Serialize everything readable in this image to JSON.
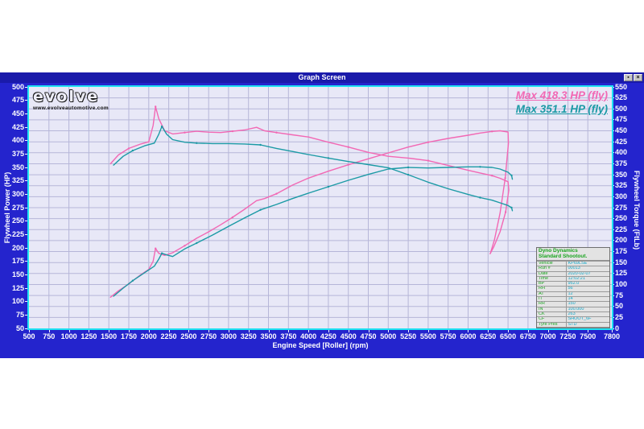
{
  "window": {
    "title": "Graph Screen",
    "button1_glyph": "▪",
    "button2_glyph": "×"
  },
  "logo": {
    "brand": "evolve",
    "url": "www.evolveautomotive.com"
  },
  "legend": [
    {
      "label": "Max 418.3 HP (fly)",
      "color": "#f268b4"
    },
    {
      "label": "Max 351.1 HP (fly)",
      "color": "#1b9aa5"
    }
  ],
  "info_box": {
    "title_line1": "Dyno Dynamics",
    "title_line2": "Standard Shootout.",
    "rows": [
      {
        "label": "Vehicle",
        "value": "KP69LSE"
      },
      {
        "label": "Run #",
        "value": "00013"
      },
      {
        "label": "Date",
        "value": "2020-02-07"
      },
      {
        "label": "Time",
        "value": "12:02:21"
      },
      {
        "label": "BP",
        "value": "952.0"
      },
      {
        "label": "RH",
        "value": "56"
      },
      {
        "label": "AT",
        "value": "12"
      },
      {
        "label": "IT",
        "value": "14"
      },
      {
        "label": "RR",
        "value": "150"
      },
      {
        "label": "IN",
        "value": "100.000"
      },
      {
        "label": "CK",
        "value": "263"
      },
      {
        "label": "CF",
        "value": "SHOOT_6F"
      },
      {
        "label": "Tyre Pres",
        "value": "STD"
      },
      {
        "label": "Gear",
        "value": "5"
      }
    ]
  },
  "chart_data": {
    "type": "line",
    "xlabel": "Engine Speed [Roller] (rpm)",
    "ylabel_left": "Flywheel Power (HP)",
    "ylabel_right": "Flywheel Torque (FtLb)",
    "xlim": [
      500,
      7800
    ],
    "hp_lim": [
      50,
      500
    ],
    "torque_lim": [
      0,
      550
    ],
    "x_grid_step": 250,
    "torque_grid_step": 25,
    "x_tick_labels": [
      500,
      750,
      1000,
      1250,
      1500,
      1750,
      2000,
      2250,
      2500,
      2750,
      3000,
      3250,
      3500,
      3750,
      4000,
      4250,
      4500,
      4750,
      5000,
      5250,
      5500,
      5750,
      6000,
      6250,
      6500,
      6750,
      7000,
      7250,
      7500,
      7800
    ],
    "hp_ticks": [
      500,
      475,
      450,
      425,
      400,
      375,
      350,
      325,
      300,
      275,
      250,
      225,
      200,
      175,
      150,
      125,
      100,
      75,
      50
    ],
    "torque_ticks": [
      550,
      525,
      500,
      475,
      450,
      425,
      400,
      375,
      350,
      325,
      300,
      275,
      250,
      225,
      200,
      175,
      150,
      125,
      100,
      75,
      50,
      25,
      0
    ],
    "grid": true,
    "legend_position": "top-right",
    "series": [
      {
        "name": "run1-power-hp",
        "axis": "hp",
        "color": "#f268b4",
        "max_label": "Max 418.3 HP (fly)",
        "points": [
          [
            1520,
            108
          ],
          [
            1620,
            120
          ],
          [
            1750,
            133
          ],
          [
            1900,
            150
          ],
          [
            2000,
            160
          ],
          [
            2055,
            175
          ],
          [
            2085,
            199
          ],
          [
            2125,
            190
          ],
          [
            2200,
            186
          ],
          [
            2300,
            191
          ],
          [
            2450,
            204
          ],
          [
            2600,
            218
          ],
          [
            2750,
            230
          ],
          [
            2900,
            243
          ],
          [
            3050,
            257
          ],
          [
            3200,
            272
          ],
          [
            3350,
            288
          ],
          [
            3450,
            292
          ],
          [
            3600,
            301
          ],
          [
            3800,
            317
          ],
          [
            4000,
            330
          ],
          [
            4250,
            343
          ],
          [
            4500,
            355
          ],
          [
            4750,
            366
          ],
          [
            5000,
            377
          ],
          [
            5250,
            388
          ],
          [
            5500,
            397
          ],
          [
            5750,
            404
          ],
          [
            6000,
            410
          ],
          [
            6150,
            414
          ],
          [
            6300,
            417
          ],
          [
            6400,
            418.3
          ],
          [
            6500,
            416
          ],
          [
            6505,
            395
          ],
          [
            6465,
            330
          ],
          [
            6400,
            265
          ],
          [
            6330,
            215
          ],
          [
            6280,
            190
          ]
        ]
      },
      {
        "name": "run1-torque-ftlb",
        "axis": "torque",
        "color": "#f268b4",
        "points": [
          [
            1520,
            375
          ],
          [
            1620,
            395
          ],
          [
            1750,
            410
          ],
          [
            1900,
            420
          ],
          [
            2000,
            425
          ],
          [
            2055,
            462
          ],
          [
            2085,
            505
          ],
          [
            2125,
            478
          ],
          [
            2200,
            450
          ],
          [
            2300,
            443
          ],
          [
            2450,
            446
          ],
          [
            2600,
            449
          ],
          [
            2750,
            447
          ],
          [
            2900,
            446
          ],
          [
            3050,
            449
          ],
          [
            3200,
            452
          ],
          [
            3350,
            458
          ],
          [
            3450,
            450
          ],
          [
            3600,
            446
          ],
          [
            3800,
            441
          ],
          [
            4000,
            436
          ],
          [
            4250,
            424
          ],
          [
            4500,
            413
          ],
          [
            4750,
            401
          ],
          [
            5000,
            392
          ],
          [
            5250,
            388
          ],
          [
            5500,
            382
          ],
          [
            5750,
            371
          ],
          [
            6000,
            360
          ],
          [
            6150,
            354
          ],
          [
            6300,
            348
          ],
          [
            6400,
            342
          ],
          [
            6500,
            334
          ],
          [
            6510,
            315
          ],
          [
            6470,
            265
          ],
          [
            6400,
            220
          ],
          [
            6320,
            185
          ],
          [
            6275,
            170
          ]
        ]
      },
      {
        "name": "run2-power-hp",
        "axis": "hp",
        "color": "#1b9aa5",
        "max_label": "Max 351.1 HP (fly)",
        "points": [
          [
            1560,
            110
          ],
          [
            1680,
            125
          ],
          [
            1800,
            139
          ],
          [
            1950,
            154
          ],
          [
            2070,
            166
          ],
          [
            2125,
            179
          ],
          [
            2165,
            190
          ],
          [
            2225,
            187
          ],
          [
            2300,
            184
          ],
          [
            2450,
            198
          ],
          [
            2600,
            209
          ],
          [
            2800,
            224
          ],
          [
            3000,
            240
          ],
          [
            3200,
            256
          ],
          [
            3400,
            271
          ],
          [
            3600,
            281
          ],
          [
            3800,
            292
          ],
          [
            4000,
            302
          ],
          [
            4250,
            314
          ],
          [
            4500,
            326
          ],
          [
            4750,
            337
          ],
          [
            5000,
            347
          ],
          [
            5250,
            350
          ],
          [
            5500,
            349
          ],
          [
            5750,
            350
          ],
          [
            6000,
            351.1
          ],
          [
            6150,
            351
          ],
          [
            6300,
            350
          ],
          [
            6400,
            347
          ],
          [
            6500,
            341
          ],
          [
            6545,
            335
          ],
          [
            6555,
            328
          ]
        ]
      },
      {
        "name": "run2-torque-ftlb",
        "axis": "torque",
        "color": "#1b9aa5",
        "points": [
          [
            1560,
            372
          ],
          [
            1680,
            392
          ],
          [
            1800,
            405
          ],
          [
            1950,
            416
          ],
          [
            2070,
            422
          ],
          [
            2125,
            442
          ],
          [
            2165,
            460
          ],
          [
            2225,
            442
          ],
          [
            2300,
            430
          ],
          [
            2450,
            424
          ],
          [
            2600,
            422
          ],
          [
            2800,
            421
          ],
          [
            3000,
            421
          ],
          [
            3200,
            420
          ],
          [
            3400,
            418
          ],
          [
            3600,
            410
          ],
          [
            3800,
            403
          ],
          [
            4000,
            396
          ],
          [
            4250,
            388
          ],
          [
            4500,
            380
          ],
          [
            4750,
            373
          ],
          [
            5000,
            366
          ],
          [
            5250,
            350
          ],
          [
            5500,
            333
          ],
          [
            5750,
            318
          ],
          [
            6000,
            305
          ],
          [
            6150,
            298
          ],
          [
            6300,
            292
          ],
          [
            6400,
            286
          ],
          [
            6500,
            280
          ],
          [
            6545,
            275
          ],
          [
            6555,
            268
          ]
        ]
      }
    ]
  }
}
